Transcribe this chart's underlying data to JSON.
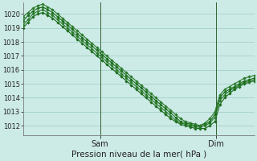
{
  "title": "Pression niveau de la mer( hPa )",
  "ylabel_ticks": [
    1012,
    1013,
    1014,
    1015,
    1016,
    1017,
    1018,
    1019,
    1020
  ],
  "ylim": [
    1011.3,
    1020.8
  ],
  "xlim": [
    0,
    96
  ],
  "xtick_positions": [
    32,
    80
  ],
  "xtick_labels": [
    "Sam",
    "Dim"
  ],
  "vline_positions": [
    32,
    80
  ],
  "bg_color": "#cceae6",
  "grid_color": "#aad4ce",
  "line_colors": [
    "#1a6b1a",
    "#2a7a2a",
    "#1a6b1a",
    "#2a7a2a"
  ],
  "figsize": [
    3.2,
    2.0
  ],
  "dpi": 100,
  "series": [
    [
      1019.0,
      1019.4,
      1019.8,
      1020.0,
      1020.1,
      1019.9,
      1019.7,
      1019.4,
      1019.1,
      1018.8,
      1018.5,
      1018.2,
      1017.9,
      1017.6,
      1017.3,
      1017.0,
      1016.7,
      1016.4,
      1016.1,
      1015.8,
      1015.5,
      1015.2,
      1014.9,
      1014.6,
      1014.3,
      1014.0,
      1013.7,
      1013.4,
      1013.1,
      1012.8,
      1012.5,
      1012.3,
      1012.1,
      1012.0,
      1011.9,
      1011.8,
      1011.8,
      1011.8,
      1012.0,
      1012.3,
      1013.5,
      1014.0,
      1014.3,
      1014.6,
      1014.8,
      1015.0,
      1015.1,
      1015.2
    ],
    [
      1019.2,
      1019.6,
      1020.0,
      1020.2,
      1020.3,
      1020.1,
      1019.9,
      1019.6,
      1019.3,
      1019.0,
      1018.7,
      1018.4,
      1018.1,
      1017.8,
      1017.5,
      1017.2,
      1016.9,
      1016.6,
      1016.3,
      1016.0,
      1015.7,
      1015.4,
      1015.1,
      1014.8,
      1014.5,
      1014.2,
      1013.9,
      1013.6,
      1013.3,
      1013.0,
      1012.7,
      1012.4,
      1012.2,
      1012.1,
      1012.0,
      1011.9,
      1011.9,
      1012.0,
      1012.2,
      1012.6,
      1013.8,
      1014.2,
      1014.5,
      1014.7,
      1014.9,
      1015.1,
      1015.2,
      1015.3
    ],
    [
      1019.5,
      1019.9,
      1020.2,
      1020.4,
      1020.5,
      1020.3,
      1020.1,
      1019.8,
      1019.5,
      1019.2,
      1018.9,
      1018.6,
      1018.3,
      1018.0,
      1017.7,
      1017.4,
      1017.1,
      1016.8,
      1016.5,
      1016.2,
      1015.9,
      1015.6,
      1015.3,
      1015.0,
      1014.7,
      1014.4,
      1014.1,
      1013.8,
      1013.5,
      1013.2,
      1012.9,
      1012.6,
      1012.3,
      1012.2,
      1012.1,
      1012.0,
      1012.0,
      1012.1,
      1012.3,
      1012.8,
      1014.0,
      1014.4,
      1014.6,
      1014.8,
      1015.0,
      1015.2,
      1015.3,
      1015.4
    ],
    [
      1019.8,
      1020.1,
      1020.4,
      1020.6,
      1020.7,
      1020.5,
      1020.3,
      1020.0,
      1019.7,
      1019.4,
      1019.1,
      1018.8,
      1018.5,
      1018.2,
      1017.9,
      1017.6,
      1017.3,
      1017.0,
      1016.7,
      1016.4,
      1016.1,
      1015.8,
      1015.5,
      1015.2,
      1014.9,
      1014.6,
      1014.3,
      1014.0,
      1013.7,
      1013.4,
      1013.1,
      1012.8,
      1012.5,
      1012.3,
      1012.2,
      1012.1,
      1012.0,
      1012.2,
      1012.5,
      1013.0,
      1014.2,
      1014.6,
      1014.8,
      1015.0,
      1015.2,
      1015.4,
      1015.5,
      1015.6
    ]
  ]
}
